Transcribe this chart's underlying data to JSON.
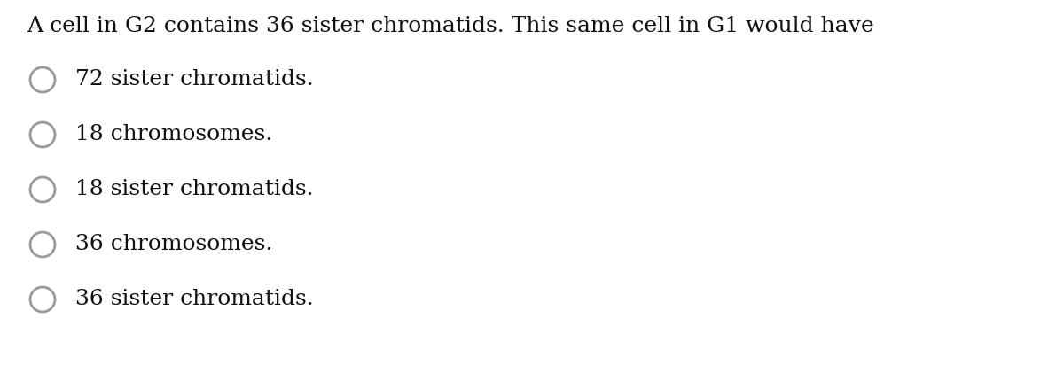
{
  "title": "A cell in G2 contains 36 sister chromatids. This same cell in G1 would have",
  "options": [
    "72 sister chromatids.",
    "18 chromosomes.",
    "18 sister chromatids.",
    "36 chromosomes.",
    "36 sister chromatids."
  ],
  "title_fontsize": 18,
  "option_fontsize": 18,
  "circle_color": "#999999",
  "circle_facecolor": "white",
  "text_color": "#111111",
  "bg_color": "#ffffff",
  "font_family": "DejaVu Serif"
}
